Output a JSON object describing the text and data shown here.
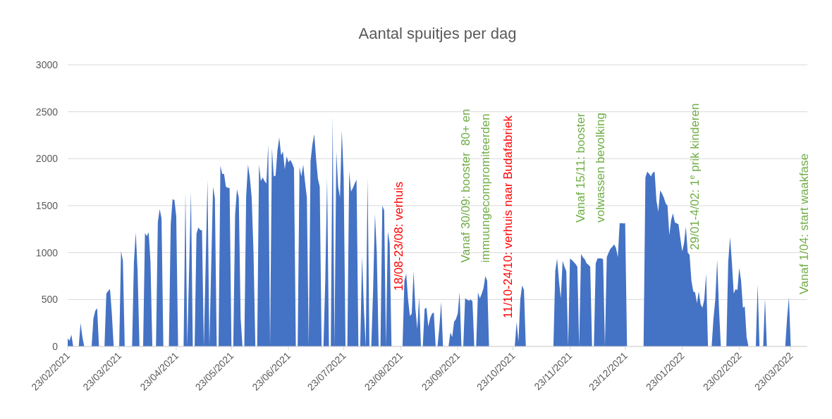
{
  "chart_data": {
    "type": "area",
    "title": "Aantal spuitjes per dag",
    "xlim": [
      "2021-02-23",
      "2022-04-01"
    ],
    "xticks": [
      {
        "value": "2021-02-23",
        "label": "23/02/2021"
      },
      {
        "value": "2021-03-23",
        "label": "23/03/2021"
      },
      {
        "value": "2021-04-23",
        "label": "23/04/2021"
      },
      {
        "value": "2021-05-23",
        "label": "23/05/2021"
      },
      {
        "value": "2021-06-23",
        "label": "23/06/2021"
      },
      {
        "value": "2021-07-23",
        "label": "23/07/2021"
      },
      {
        "value": "2021-08-23",
        "label": "23/08/2021"
      },
      {
        "value": "2021-09-23",
        "label": "23/09/2021"
      },
      {
        "value": "2021-10-23",
        "label": "23/10/2021"
      },
      {
        "value": "2021-11-23",
        "label": "23/11/2021"
      },
      {
        "value": "2021-12-23",
        "label": "23/12/2021"
      },
      {
        "value": "2022-01-23",
        "label": "23/01/2022"
      },
      {
        "value": "2022-02-23",
        "label": "23/02/2022"
      },
      {
        "value": "2022-03-23",
        "label": "23/03/2022"
      }
    ],
    "ylim": [
      0,
      3000
    ],
    "yticks": [
      0,
      500,
      1000,
      1500,
      2000,
      2500,
      3000
    ],
    "grid": "y",
    "series": [
      {
        "color": "#4472c4",
        "x": [
          "2021-02-23",
          "2021-02-24",
          "2021-02-25",
          "2021-02-26",
          "2021-03-01",
          "2021-03-02",
          "2021-03-03",
          "2021-03-04",
          "2021-03-08",
          "2021-03-09",
          "2021-03-10",
          "2021-03-11",
          "2021-03-12",
          "2021-03-15",
          "2021-03-16",
          "2021-03-17",
          "2021-03-18",
          "2021-03-19",
          "2021-03-20",
          "2021-03-23",
          "2021-03-24",
          "2021-03-25",
          "2021-03-26",
          "2021-03-30",
          "2021-03-31",
          "2021-04-01",
          "2021-04-02",
          "2021-04-03",
          "2021-04-05",
          "2021-04-06",
          "2021-04-07",
          "2021-04-08",
          "2021-04-09",
          "2021-04-10",
          "2021-04-12",
          "2021-04-13",
          "2021-04-14",
          "2021-04-15",
          "2021-04-16",
          "2021-04-19",
          "2021-04-20",
          "2021-04-21",
          "2021-04-22",
          "2021-04-23",
          "2021-04-24",
          "2021-04-27",
          "2021-04-28",
          "2021-04-29",
          "2021-05-01",
          "2021-05-02",
          "2021-05-03",
          "2021-05-04",
          "2021-05-05",
          "2021-05-06",
          "2021-05-07",
          "2021-05-08",
          "2021-05-10",
          "2021-05-11",
          "2021-05-13",
          "2021-05-14",
          "2021-05-15",
          "2021-05-16",
          "2021-05-17",
          "2021-05-18",
          "2021-05-19",
          "2021-05-20",
          "2021-05-21",
          "2021-05-22",
          "2021-05-23",
          "2021-05-24",
          "2021-05-25",
          "2021-05-26",
          "2021-05-27",
          "2021-05-28",
          "2021-05-29",
          "2021-05-30",
          "2021-05-31",
          "2021-06-01",
          "2021-06-02",
          "2021-06-03",
          "2021-06-04",
          "2021-06-05",
          "2021-06-06",
          "2021-06-07",
          "2021-06-08",
          "2021-06-09",
          "2021-06-10",
          "2021-06-11",
          "2021-06-12",
          "2021-06-13",
          "2021-06-14",
          "2021-06-15",
          "2021-06-16",
          "2021-06-17",
          "2021-06-18",
          "2021-06-19",
          "2021-06-20",
          "2021-06-21",
          "2021-06-22",
          "2021-06-23",
          "2021-06-24",
          "2021-06-25",
          "2021-06-26",
          "2021-06-27",
          "2021-06-28",
          "2021-06-29",
          "2021-06-30",
          "2021-07-01",
          "2021-07-02",
          "2021-07-03",
          "2021-07-04",
          "2021-07-05",
          "2021-07-06",
          "2021-07-07",
          "2021-07-08",
          "2021-07-09",
          "2021-07-10",
          "2021-07-11",
          "2021-07-12",
          "2021-07-13",
          "2021-07-14",
          "2021-07-15",
          "2021-07-16",
          "2021-07-17",
          "2021-07-18",
          "2021-07-19",
          "2021-07-20",
          "2021-07-21",
          "2021-07-22",
          "2021-07-23",
          "2021-07-24",
          "2021-07-25",
          "2021-07-26",
          "2021-07-27",
          "2021-07-28",
          "2021-07-29",
          "2021-07-30",
          "2021-07-31",
          "2021-08-01",
          "2021-08-02",
          "2021-08-03",
          "2021-08-04",
          "2021-08-05",
          "2021-08-06",
          "2021-08-07",
          "2021-08-08",
          "2021-08-09",
          "2021-08-10",
          "2021-08-11",
          "2021-08-12",
          "2021-08-13",
          "2021-08-14",
          "2021-08-15",
          "2021-08-16",
          "2021-08-17",
          "2021-08-18",
          "2021-08-24",
          "2021-08-25",
          "2021-08-26",
          "2021-08-27",
          "2021-08-28",
          "2021-08-29",
          "2021-08-30",
          "2021-08-31",
          "2021-09-01",
          "2021-09-02",
          "2021-09-03",
          "2021-09-04",
          "2021-09-05",
          "2021-09-06",
          "2021-09-07",
          "2021-09-08",
          "2021-09-09",
          "2021-09-10",
          "2021-09-11",
          "2021-09-12",
          "2021-09-13",
          "2021-09-14",
          "2021-09-15",
          "2021-09-18",
          "2021-09-19",
          "2021-09-20",
          "2021-09-21",
          "2021-09-22",
          "2021-09-23",
          "2021-09-24",
          "2021-09-25",
          "2021-09-26",
          "2021-09-27",
          "2021-09-28",
          "2021-09-29",
          "2021-09-30",
          "2021-10-01",
          "2021-10-02",
          "2021-10-03",
          "2021-10-04",
          "2021-10-05",
          "2021-10-06",
          "2021-10-07",
          "2021-10-08",
          "2021-10-09",
          "2021-10-10",
          "2021-10-24",
          "2021-10-25",
          "2021-10-26",
          "2021-10-27",
          "2021-10-28",
          "2021-10-29",
          "2021-10-30",
          "2021-11-14",
          "2021-11-15",
          "2021-11-16",
          "2021-11-17",
          "2021-11-18",
          "2021-11-19",
          "2021-11-20",
          "2021-11-21",
          "2021-11-22",
          "2021-11-23",
          "2021-11-24",
          "2021-11-25",
          "2021-11-26",
          "2021-11-27",
          "2021-11-28",
          "2021-11-29",
          "2021-11-30",
          "2021-12-01",
          "2021-12-02",
          "2021-12-03",
          "2021-12-04",
          "2021-12-05",
          "2021-12-06",
          "2021-12-07",
          "2021-12-08",
          "2021-12-09",
          "2021-12-10",
          "2021-12-11",
          "2021-12-12",
          "2021-12-13",
          "2021-12-14",
          "2021-12-15",
          "2021-12-16",
          "2021-12-17",
          "2021-12-18",
          "2021-12-19",
          "2021-12-20",
          "2021-12-21",
          "2021-12-22",
          "2021-12-23",
          "2021-12-24",
          "2022-01-02",
          "2022-01-03",
          "2022-01-04",
          "2022-01-05",
          "2022-01-06",
          "2022-01-07",
          "2022-01-08",
          "2022-01-09",
          "2022-01-10",
          "2022-01-11",
          "2022-01-12",
          "2022-01-13",
          "2022-01-14",
          "2022-01-15",
          "2022-01-16",
          "2022-01-17",
          "2022-01-18",
          "2022-01-19",
          "2022-01-20",
          "2022-01-21",
          "2022-01-22",
          "2022-01-23",
          "2022-01-24",
          "2022-01-25",
          "2022-01-26",
          "2022-01-27",
          "2022-01-28",
          "2022-01-29",
          "2022-01-30",
          "2022-01-31",
          "2022-02-01",
          "2022-02-02",
          "2022-02-03",
          "2022-02-04",
          "2022-02-05",
          "2022-02-06",
          "2022-02-08",
          "2022-02-09",
          "2022-02-10",
          "2022-02-11",
          "2022-02-12",
          "2022-02-13",
          "2022-02-16",
          "2022-02-17",
          "2022-02-18",
          "2022-02-19",
          "2022-02-20",
          "2022-02-21",
          "2022-02-22",
          "2022-02-23",
          "2022-02-24",
          "2022-02-25",
          "2022-02-26",
          "2022-02-27",
          "2022-02-28",
          "2022-03-04",
          "2022-03-05",
          "2022-03-06",
          "2022-03-08",
          "2022-03-09",
          "2022-03-10",
          "2022-03-20",
          "2022-03-21",
          "2022-03-22",
          "2022-03-23"
        ],
        "values": [
          87,
          62,
          125,
          0,
          0,
          250,
          100,
          0,
          0,
          300,
          380,
          407,
          0,
          0,
          562,
          590,
          612,
          350,
          0,
          0,
          1017,
          912,
          0,
          0,
          900,
          1217,
          800,
          0,
          0,
          1207,
          1175,
          1217,
          900,
          0,
          0,
          1325,
          1462,
          1367,
          0,
          0,
          1300,
          1567,
          1560,
          1387,
          0,
          0,
          1637,
          0,
          1650,
          0,
          0,
          1200,
          1267,
          1242,
          1235,
          0,
          1775,
          0,
          1700,
          1580,
          0,
          0,
          1925,
          1837,
          1837,
          1700,
          1690,
          1690,
          0,
          0,
          1400,
          1675,
          1587,
          300,
          0,
          0,
          1600,
          1937,
          1800,
          1587,
          1000,
          0,
          0,
          1937,
          1762,
          1800,
          1760,
          1737,
          2150,
          0,
          2112,
          1812,
          1820,
          2087,
          2225,
          2037,
          2075,
          1887,
          2025,
          1962,
          1987,
          1950,
          1900,
          0,
          0,
          1912,
          1812,
          1937,
          1750,
          1587,
          0,
          1975,
          2150,
          2262,
          2000,
          1787,
          1700,
          0,
          0,
          700,
          1800,
          0,
          0,
          2450,
          0,
          2075,
          1700,
          1587,
          2300,
          1800,
          0,
          0,
          1862,
          1650,
          1687,
          1737,
          1775,
          0,
          0,
          962,
          400,
          0,
          1800,
          0,
          0,
          600,
          1412,
          1000,
          0,
          0,
          1500,
          1450,
          0,
          1225,
          1100,
          0,
          0,
          700,
          775,
          500,
          325,
          350,
          800,
          400,
          187,
          525,
          0,
          0,
          400,
          412,
          212,
          300,
          350,
          362,
          0,
          0,
          200,
          475,
          0,
          0,
          150,
          100,
          262,
          290,
          350,
          575,
          0,
          0,
          512,
          500,
          487,
          500,
          480,
          0,
          0,
          575,
          512,
          560,
          620,
          750,
          700,
          0,
          0,
          262,
          50,
          500,
          650,
          600,
          0,
          0,
          800,
          937,
          700,
          512,
          912,
          850,
          800,
          0,
          937,
          920,
          900,
          880,
          850,
          0,
          987,
          950,
          930,
          887,
          870,
          850,
          0,
          0,
          887,
          937,
          940,
          937,
          930,
          0,
          950,
          1000,
          1040,
          1062,
          1087,
          1050,
          950,
          1312,
          1312,
          1310,
          1312,
          0,
          0,
          1800,
          1862,
          1840,
          1812,
          1850,
          1862,
          1550,
          1437,
          1662,
          1630,
          1587,
          1525,
          1500,
          1187,
          1350,
          1417,
          1320,
          1312,
          1300,
          1150,
          1012,
          1100,
          1275,
          1000,
          975,
          700,
          587,
          575,
          462,
          587,
          450,
          412,
          500,
          775,
          0,
          0,
          300,
          500,
          925,
          400,
          0,
          0,
          900,
          1162,
          900,
          562,
          612,
          600,
          837,
          700,
          412,
          425,
          100,
          0,
          0,
          662,
          0,
          0,
          512,
          0,
          0,
          300,
          525,
          0
        ]
      }
    ],
    "annotations": [
      "18/08-23/08: verhuis",
      "Vanaf 30/09: booster  80+ en\nimmuungecompromiteerden",
      "11/10-24/10: verhuis naar Budafabriek",
      "Vanaf 15/11: booster\nvolwassen bevolking",
      "29/01-4/02: 1$^{e}$ prik kinderen",
      "Vanaf 1/04: start waakfase"
    ]
  }
}
